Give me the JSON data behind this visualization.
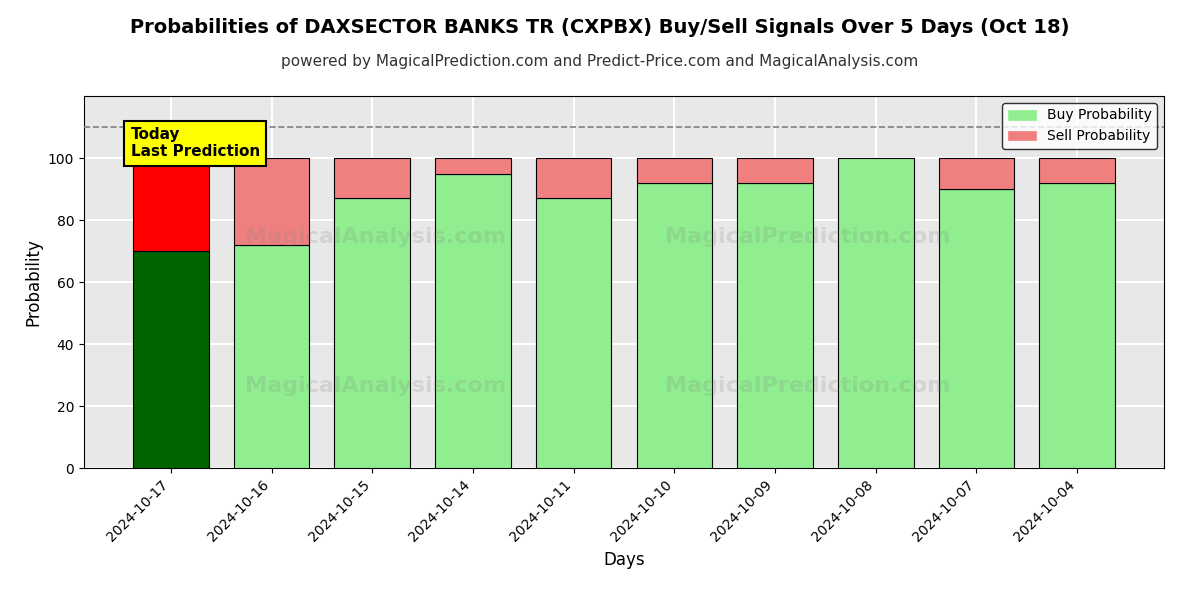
{
  "title": "Probabilities of DAXSECTOR BANKS TR (CXPBX) Buy/Sell Signals Over 5 Days (Oct 18)",
  "subtitle": "powered by MagicalPrediction.com and Predict-Price.com and MagicalAnalysis.com",
  "xlabel": "Days",
  "ylabel": "Probability",
  "categories": [
    "2024-10-17",
    "2024-10-16",
    "2024-10-15",
    "2024-10-14",
    "2024-10-11",
    "2024-10-10",
    "2024-10-09",
    "2024-10-08",
    "2024-10-07",
    "2024-10-04"
  ],
  "buy_values": [
    70,
    72,
    87,
    95,
    87,
    92,
    92,
    100,
    90,
    92
  ],
  "sell_values": [
    30,
    28,
    13,
    5,
    13,
    8,
    8,
    0,
    10,
    8
  ],
  "buy_colors": [
    "#006400",
    "#90EE90",
    "#90EE90",
    "#90EE90",
    "#90EE90",
    "#90EE90",
    "#90EE90",
    "#90EE90",
    "#90EE90",
    "#90EE90"
  ],
  "sell_colors": [
    "#FF0000",
    "#F08080",
    "#F08080",
    "#F08080",
    "#F08080",
    "#F08080",
    "#F08080",
    "#F08080",
    "#F08080",
    "#F08080"
  ],
  "dashed_line_y": 110,
  "ylim": [
    0,
    120
  ],
  "yticks": [
    0,
    20,
    40,
    60,
    80,
    100
  ],
  "legend_buy_color": "#90EE90",
  "legend_sell_color": "#F08080",
  "annotation_text": "Today\nLast Prediction",
  "annotation_bg": "#FFFF00",
  "watermark1": "MagicalAnalysis.com",
  "watermark2": "MagicalPrediction.com",
  "background_color": "#ffffff",
  "plot_bg_color": "#e8e8e8",
  "grid_color": "#ffffff",
  "bar_edge_color": "#000000",
  "title_fontsize": 14,
  "subtitle_fontsize": 11
}
